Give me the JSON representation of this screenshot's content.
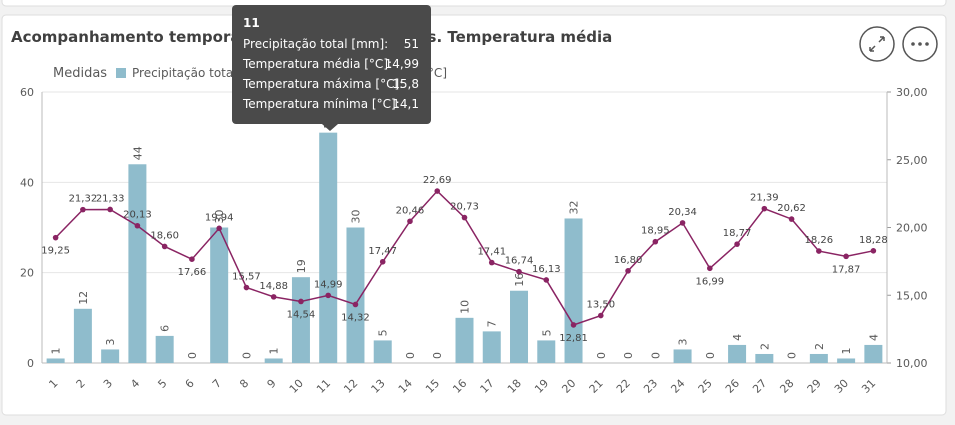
{
  "chart_data": {
    "type": "combo",
    "title": "Acompanhamento temporal - Precipitação total vs. Temperatura média",
    "legend_title": "Medidas",
    "legend": "top-left",
    "grid": true,
    "categories": [
      "1",
      "2",
      "3",
      "4",
      "5",
      "6",
      "7",
      "8",
      "9",
      "10",
      "11",
      "12",
      "13",
      "14",
      "15",
      "16",
      "17",
      "18",
      "19",
      "20",
      "21",
      "22",
      "23",
      "24",
      "25",
      "26",
      "27",
      "28",
      "29",
      "30",
      "31"
    ],
    "ylim": [
      0,
      60
    ],
    "yticks": [
      0,
      20,
      40,
      60
    ],
    "y2lim": [
      10,
      30
    ],
    "y2ticks": [
      {
        "value": 10,
        "label": "10,00"
      },
      {
        "value": 15,
        "label": "15,00"
      },
      {
        "value": 20,
        "label": "20,00"
      },
      {
        "value": 25,
        "label": "25,00"
      },
      {
        "value": 30,
        "label": "30,00"
      }
    ],
    "series": [
      {
        "name": "Precipitação total [mm]",
        "type": "bar",
        "color": "#8fbccc",
        "values": [
          1,
          12,
          3,
          44,
          6,
          0,
          30,
          0,
          1,
          19,
          51,
          30,
          5,
          0,
          0,
          10,
          7,
          16,
          5,
          32,
          0,
          0,
          0,
          3,
          0,
          4,
          2,
          0,
          2,
          1,
          4
        ]
      },
      {
        "name": "Temperatura média [°C]",
        "type": "line",
        "axis": "y2",
        "color": "#8a2463",
        "values": [
          19.25,
          21.32,
          21.33,
          20.13,
          18.6,
          17.66,
          19.94,
          15.57,
          14.88,
          14.54,
          14.99,
          14.32,
          17.47,
          20.46,
          22.69,
          20.73,
          17.41,
          16.74,
          16.13,
          12.81,
          13.5,
          16.8,
          18.95,
          20.34,
          16.99,
          18.77,
          21.39,
          20.62,
          18.26,
          17.87,
          18.28
        ],
        "value_labels": [
          "19,25",
          "21,32",
          "21,33",
          "20,13",
          "18,60",
          "17,66",
          "19,94",
          "15,57",
          "14,88",
          "14,54",
          "14,99",
          "14,32",
          "17,47",
          "20,46",
          "22,69",
          "20,73",
          "17,41",
          "16,74",
          "16,13",
          "12,81",
          "13,50",
          "16,80",
          "18,95",
          "20,34",
          "16,99",
          "18,77",
          "21,39",
          "20,62",
          "18,26",
          "17,87",
          "18,28"
        ]
      }
    ],
    "tooltip": {
      "title": "11",
      "rows": [
        {
          "label": "Precipitação total [mm]:",
          "value": "51"
        },
        {
          "label": "Temperatura média [°C]:",
          "value": "14,99"
        },
        {
          "label": "Temperatura máxima [°C]:",
          "value": "15,8"
        },
        {
          "label": "Temperatura mínima [°C]:",
          "value": "14,1"
        }
      ]
    }
  }
}
